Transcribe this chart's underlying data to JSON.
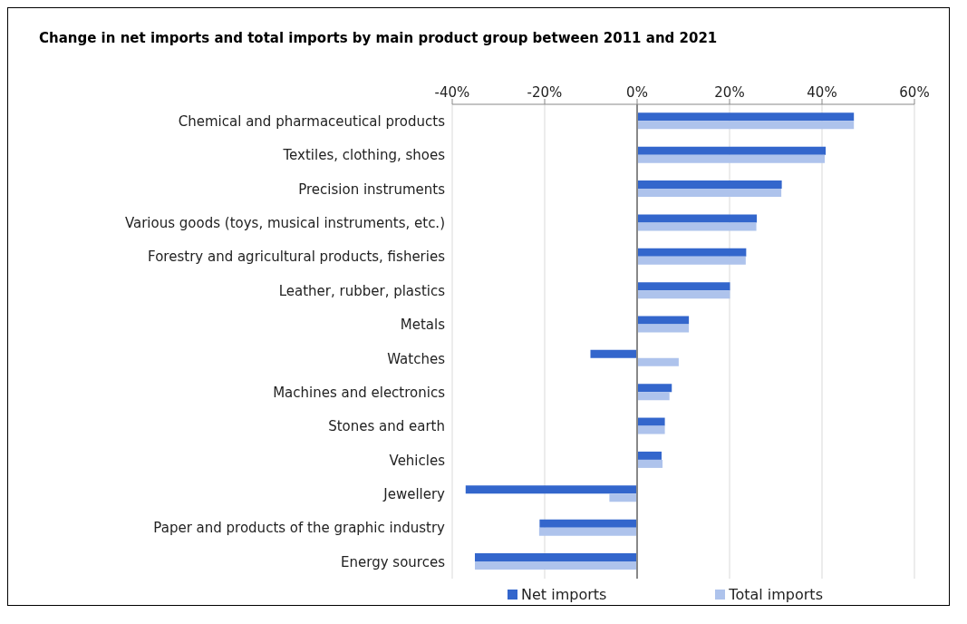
{
  "chart_data": {
    "type": "bar",
    "orientation": "horizontal",
    "title": "Change in net imports and total imports by main product group between 2011 and 2021",
    "categories": [
      "Chemical and pharmaceutical products",
      "Textiles, clothing, shoes",
      "Precision instruments",
      "Various goods (toys, musical instruments, etc.)",
      "Forestry and agricultural products, fisheries",
      "Leather, rubber, plastics",
      "Metals",
      "Watches",
      "Machines and electronics",
      "Stones and earth",
      "Vehicles",
      "Jewellery",
      "Paper and products of the graphic industry",
      "Energy sources"
    ],
    "series": [
      {
        "name": "Net imports",
        "color": "#3366cc",
        "values": [
          46.9,
          40.8,
          31.3,
          25.9,
          23.6,
          20.1,
          11.2,
          -10.1,
          7.5,
          6.0,
          5.3,
          -37.1,
          -21.1,
          -35.1
        ]
      },
      {
        "name": "Total imports",
        "color": "#aec3ec",
        "values": [
          46.9,
          40.6,
          31.2,
          25.8,
          23.5,
          20.1,
          11.2,
          9.0,
          7.0,
          6.0,
          5.5,
          -6.0,
          -21.2,
          -35.1
        ]
      }
    ],
    "xlim": [
      -40,
      60
    ],
    "xticks": [
      {
        "value": -40,
        "label": "-40%"
      },
      {
        "value": -20,
        "label": "-20%"
      },
      {
        "value": 0,
        "label": "0%"
      },
      {
        "value": 20,
        "label": "20%"
      },
      {
        "value": 40,
        "label": "40%"
      },
      {
        "value": 60,
        "label": "60%"
      }
    ],
    "grid": "x",
    "legend": "bottom"
  }
}
